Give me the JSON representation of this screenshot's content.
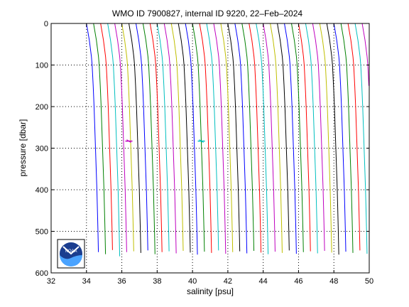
{
  "chart_data": {
    "type": "line",
    "title": "WMO ID 7900827, internal ID 9220, 22–Feb–2024",
    "xlabel": "salinity [psu]",
    "ylabel": "pressure [dbar]",
    "xlim": [
      32,
      50
    ],
    "ylim": [
      600,
      0
    ],
    "y_reversed": true,
    "grid": true,
    "grid_style": "dotted",
    "xticks": [
      "32",
      "34",
      "36",
      "38",
      "40",
      "42",
      "44",
      "46",
      "48",
      "50"
    ],
    "yticks": [
      "0",
      "100",
      "200",
      "300",
      "400",
      "500",
      "600"
    ],
    "series_colors": [
      "#0000ff",
      "#008000",
      "#ff0000",
      "#00bfbf",
      "#bf00bf",
      "#bfbf00",
      "#000000"
    ],
    "profile_count": 45,
    "profile_spacing_psu": 0.4,
    "first_profile_offset_psu": 0,
    "profile_max_pressure_dbar": [
      550,
      555,
      545,
      560,
      550,
      548,
      552,
      546,
      555,
      550,
      548,
      553,
      547,
      551,
      556,
      549,
      552,
      546,
      554,
      550,
      548,
      553,
      547,
      551,
      555,
      549,
      552,
      546,
      554,
      550,
      548,
      553,
      547,
      551,
      556,
      549,
      552,
      546,
      554,
      550,
      548,
      553,
      547,
      551,
      556
    ],
    "reference_profile": {
      "pressure_dbar": [
        0,
        20,
        40,
        60,
        80,
        100,
        150,
        200,
        250,
        300,
        350,
        400,
        450,
        500,
        560
      ],
      "salinity_psu": [
        34.0,
        34.08,
        34.16,
        34.22,
        34.28,
        34.32,
        34.38,
        34.43,
        34.47,
        34.51,
        34.55,
        34.59,
        34.62,
        34.65,
        34.68
      ]
    },
    "markers": [
      {
        "x": 36.4,
        "y": 283,
        "color": "#bf00bf"
      },
      {
        "x": 40.5,
        "y": 283,
        "color": "#00bfbf"
      }
    ],
    "logo": "NOAA"
  }
}
